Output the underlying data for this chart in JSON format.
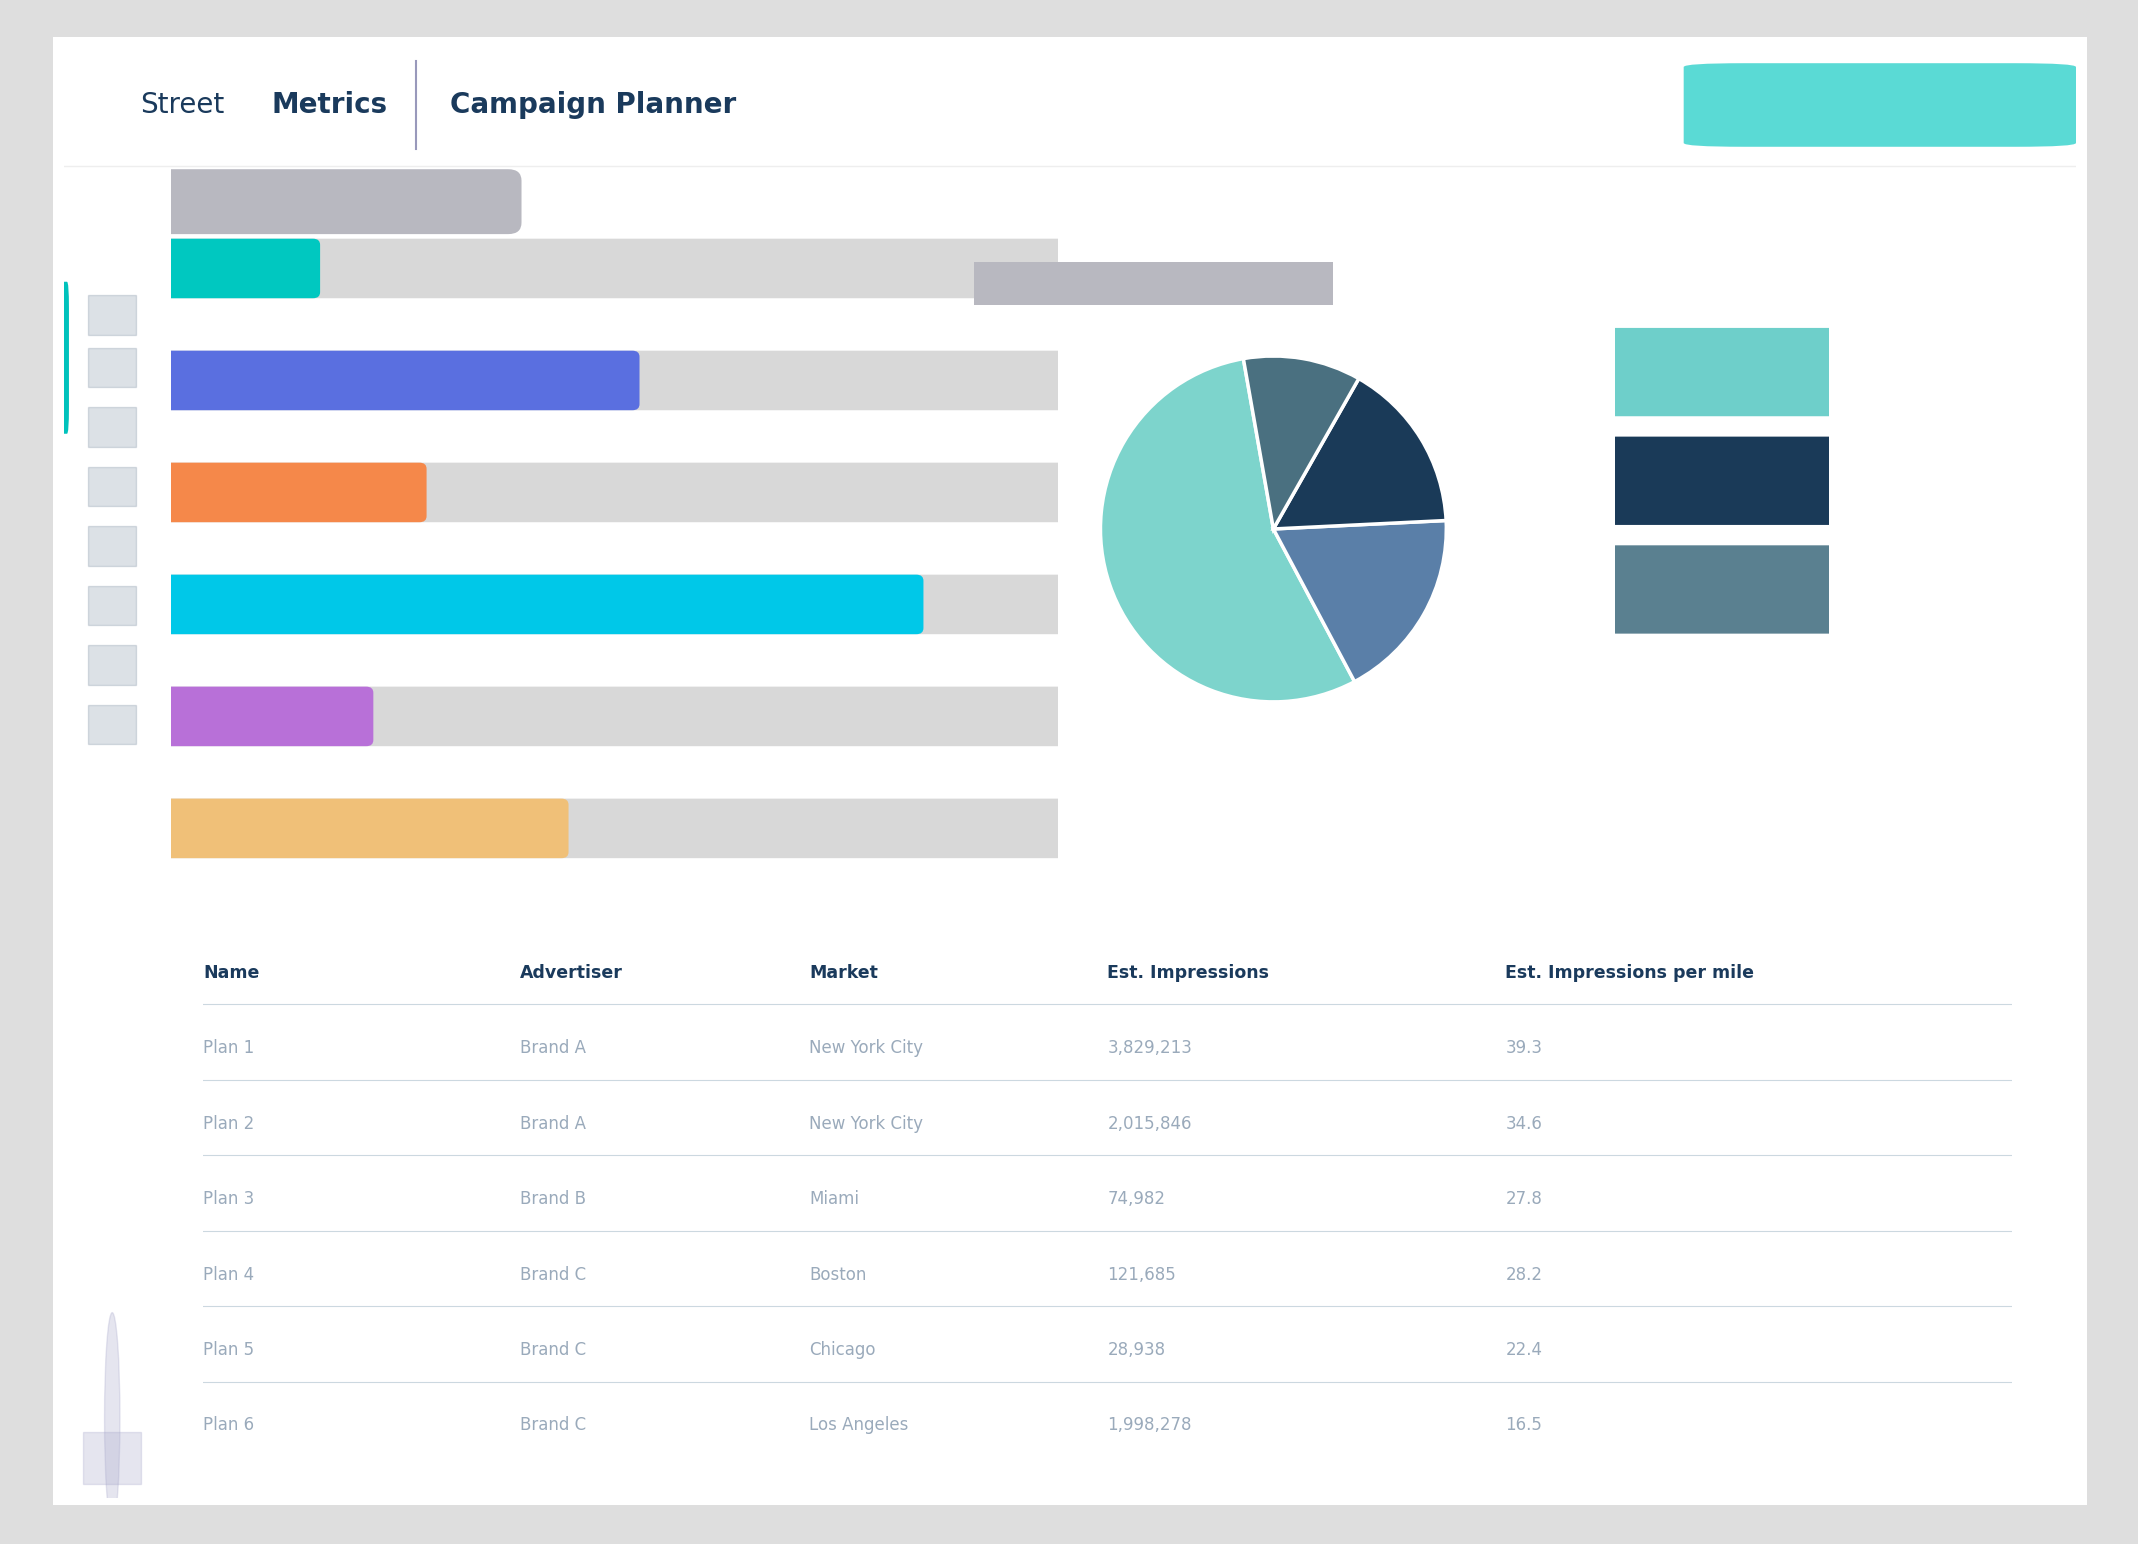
{
  "bg_color": "#dedede",
  "card_color": "#ffffff",
  "bar_values": [
    0.16,
    0.52,
    0.28,
    0.84,
    0.22,
    0.44
  ],
  "bar_colors": [
    "#00c8c0",
    "#5a6fe0",
    "#f5884a",
    "#00c8e8",
    "#b870d8",
    "#f0c078"
  ],
  "bar_bg_color": "#d8d8d8",
  "pie_values": [
    55,
    18,
    16,
    11
  ],
  "pie_colors": [
    "#7dd4cc",
    "#5a7fa8",
    "#1a3a58",
    "#4a7080"
  ],
  "legend_colors": [
    "#6ecfca",
    "#1a3a58",
    "#5a8090"
  ],
  "table_headers": [
    "Name",
    "Advertiser",
    "Market",
    "Est. Impressions",
    "Est. Impressions per mile"
  ],
  "table_data": [
    [
      "Plan 1",
      "Brand A",
      "New York City",
      "3,829,213",
      "39.3"
    ],
    [
      "Plan 2",
      "Brand A",
      "New York City",
      "2,015,846",
      "34.6"
    ],
    [
      "Plan 3",
      "Brand B",
      "Miami",
      "74,982",
      "27.8"
    ],
    [
      "Plan 4",
      "Brand C",
      "Boston",
      "121,685",
      "28.2"
    ],
    [
      "Plan 5",
      "Brand C",
      "Chicago",
      "28,938",
      "22.4"
    ],
    [
      "Plan 6",
      "Brand C",
      "Los Angeles",
      "1,998,278",
      "16.5"
    ]
  ],
  "table_header_color": "#1a3a5c",
  "table_row_color": "#9aaabb",
  "table_line_color": "#ccd8e0"
}
